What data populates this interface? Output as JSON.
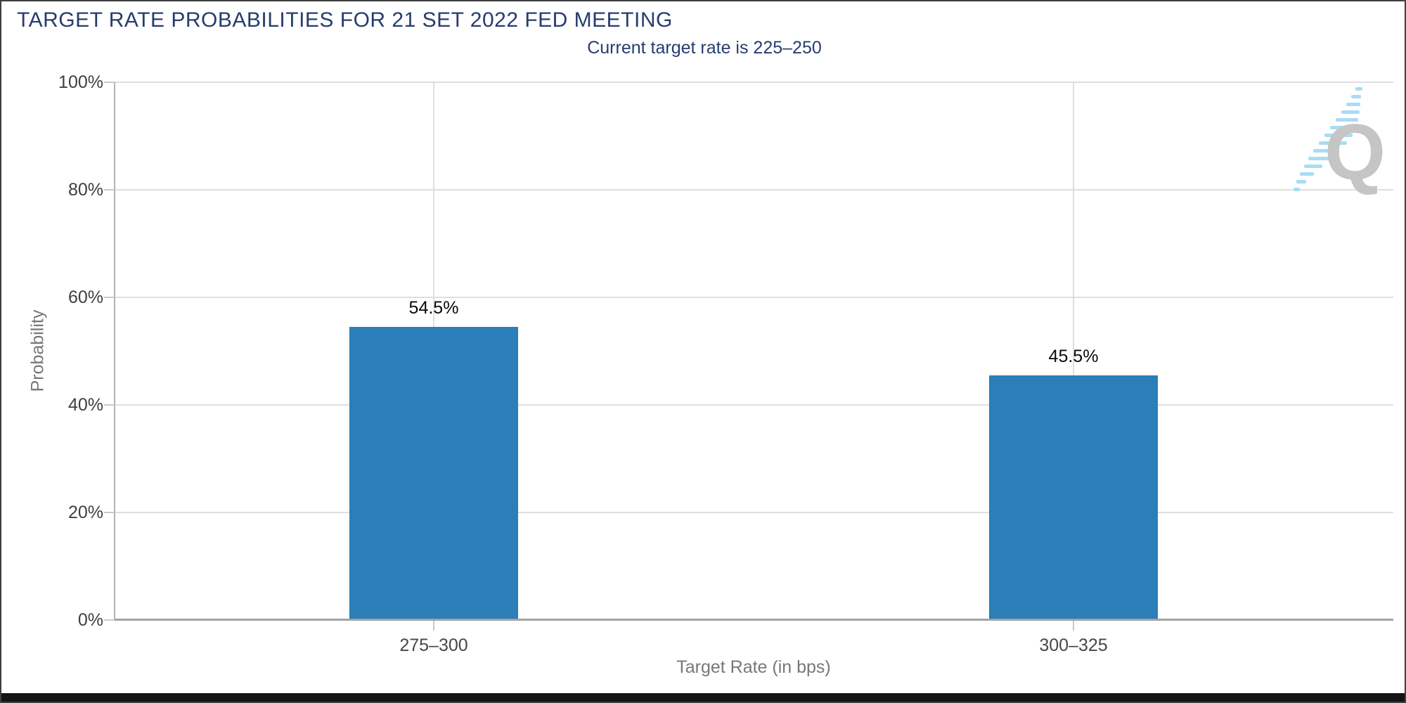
{
  "chart_data": {
    "type": "bar",
    "title": "TARGET RATE PROBABILITIES FOR 21 SET 2022 FED MEETING",
    "subtitle": "Current target rate is 225–250",
    "categories": [
      "275–300",
      "300–325"
    ],
    "values": [
      54.5,
      45.5
    ],
    "value_labels": [
      "54.5%",
      "45.5%"
    ],
    "xlabel": "Target Rate (in bps)",
    "ylabel": "Probability",
    "ylim": [
      0,
      100
    ],
    "yticks": [
      {
        "value": 0,
        "label": "0%"
      },
      {
        "value": 20,
        "label": "20%"
      },
      {
        "value": 40,
        "label": "40%"
      },
      {
        "value": 60,
        "label": "60%"
      },
      {
        "value": 80,
        "label": "80%"
      },
      {
        "value": 100,
        "label": "100%"
      }
    ],
    "grid": true,
    "legend_position": "none",
    "bar_color": "#2b7eb8"
  },
  "colors": {
    "title_navy": "#263d6e",
    "axis_text_gray": "#787878",
    "tick_text_gray": "#3f3f3f",
    "gridline_gray": "#dedede",
    "logo_gray": "#c5c5c5",
    "logo_blue": "#a9dcf5"
  },
  "branding": {
    "logo_icon": "q-watermark-logo",
    "logo_letter": "Q"
  }
}
